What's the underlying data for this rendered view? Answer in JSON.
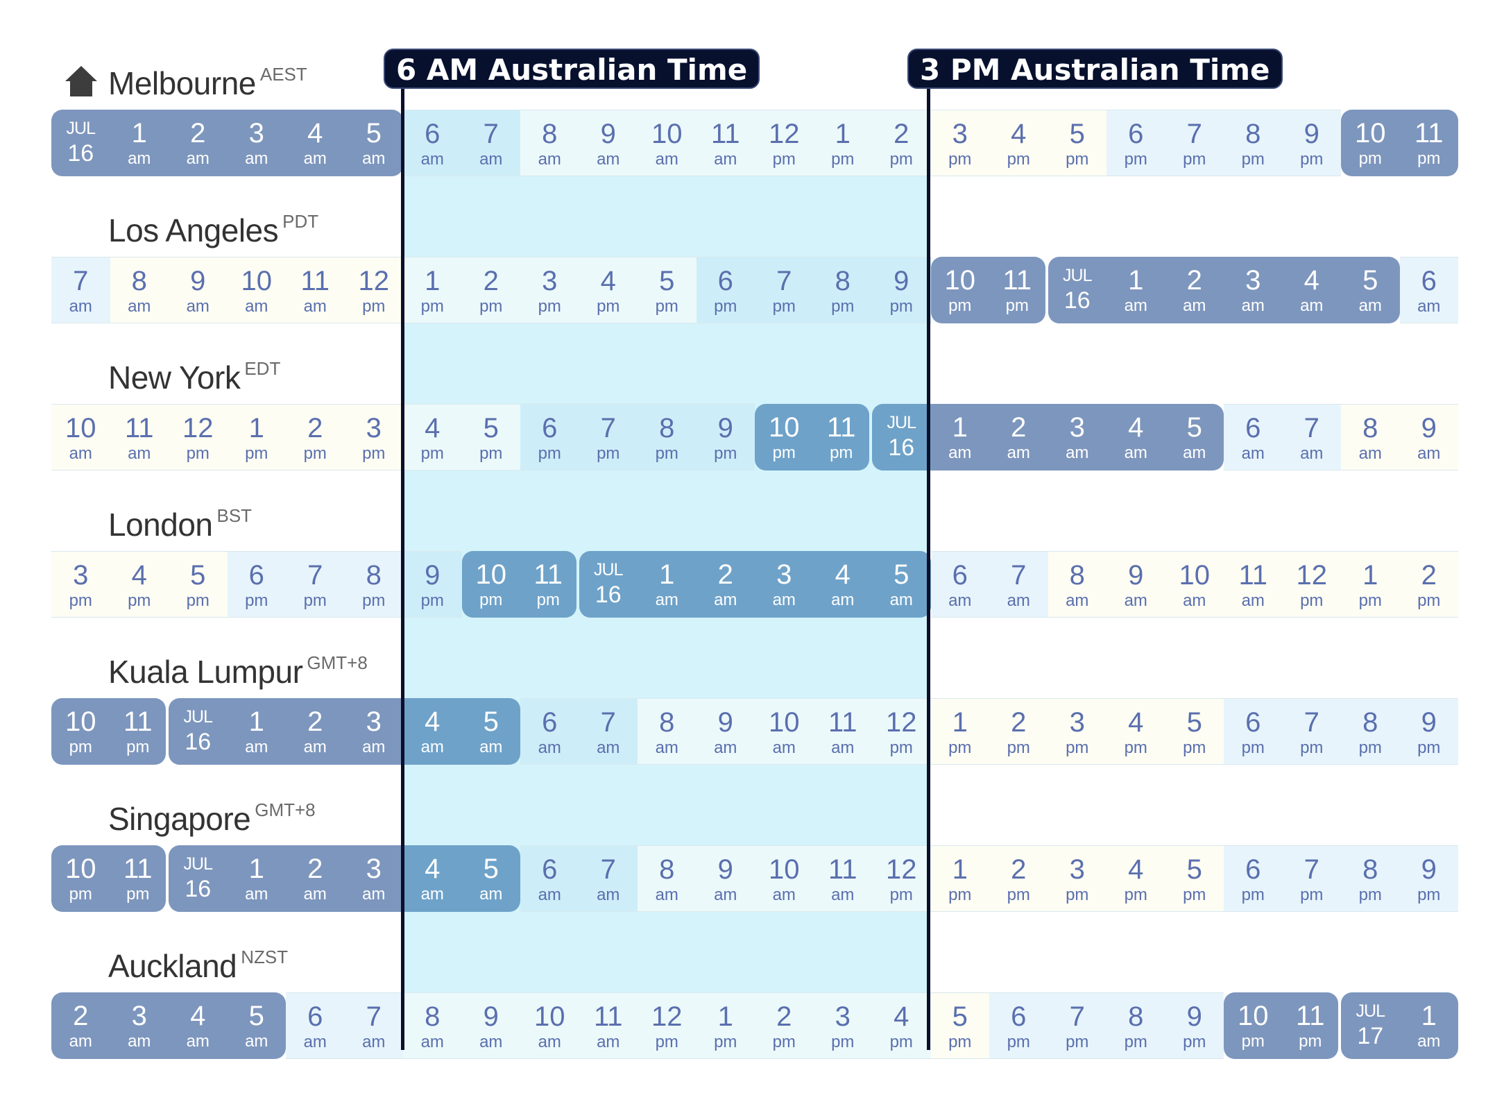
{
  "markers": [
    {
      "label": "6 AM Australian Time",
      "position": "left"
    },
    {
      "label": "3 PM Australian Time",
      "position": "right"
    }
  ],
  "icons": {
    "home": "home-icon"
  },
  "colors": {
    "night": "#7d96bd",
    "night_text": "#ffffff",
    "dawn": "#6ea2c9",
    "morning": "#cdeef8",
    "day": "#ecf9fa",
    "evening": "#e7f4fb",
    "afternoon": "#fdfdf3",
    "day_text": "#5a6fae",
    "highlight": "#d4f3fa",
    "marker": "#07112e"
  },
  "cities": [
    {
      "name": "Melbourne",
      "abbr": "AEST",
      "home": true,
      "cells": [
        {
          "type": "date",
          "m": "JUL",
          "d": "16",
          "c": "night"
        },
        {
          "n": "1",
          "s": "am",
          "c": "night"
        },
        {
          "n": "2",
          "s": "am",
          "c": "night"
        },
        {
          "n": "3",
          "s": "am",
          "c": "night"
        },
        {
          "n": "4",
          "s": "am",
          "c": "night"
        },
        {
          "n": "5",
          "s": "am",
          "c": "night"
        },
        {
          "n": "6",
          "s": "am",
          "c": "morning"
        },
        {
          "n": "7",
          "s": "am",
          "c": "morning"
        },
        {
          "n": "8",
          "s": "am",
          "c": "day"
        },
        {
          "n": "9",
          "s": "am",
          "c": "day"
        },
        {
          "n": "10",
          "s": "am",
          "c": "day"
        },
        {
          "n": "11",
          "s": "am",
          "c": "day"
        },
        {
          "n": "12",
          "s": "pm",
          "c": "day"
        },
        {
          "n": "1",
          "s": "pm",
          "c": "day"
        },
        {
          "n": "2",
          "s": "pm",
          "c": "day"
        },
        {
          "n": "3",
          "s": "pm",
          "c": "afternoon"
        },
        {
          "n": "4",
          "s": "pm",
          "c": "afternoon"
        },
        {
          "n": "5",
          "s": "pm",
          "c": "afternoon"
        },
        {
          "n": "6",
          "s": "pm",
          "c": "evening"
        },
        {
          "n": "7",
          "s": "pm",
          "c": "evening"
        },
        {
          "n": "8",
          "s": "pm",
          "c": "evening"
        },
        {
          "n": "9",
          "s": "pm",
          "c": "evening"
        },
        {
          "n": "10",
          "s": "pm",
          "c": "night"
        },
        {
          "n": "11",
          "s": "pm",
          "c": "night"
        }
      ]
    },
    {
      "name": "Los Angeles",
      "abbr": "PDT",
      "cells": [
        {
          "n": "7",
          "s": "am",
          "c": "evening"
        },
        {
          "n": "8",
          "s": "am",
          "c": "afternoon"
        },
        {
          "n": "9",
          "s": "am",
          "c": "afternoon"
        },
        {
          "n": "10",
          "s": "am",
          "c": "afternoon"
        },
        {
          "n": "11",
          "s": "am",
          "c": "afternoon"
        },
        {
          "n": "12",
          "s": "pm",
          "c": "afternoon"
        },
        {
          "n": "1",
          "s": "pm",
          "c": "day"
        },
        {
          "n": "2",
          "s": "pm",
          "c": "day"
        },
        {
          "n": "3",
          "s": "pm",
          "c": "day"
        },
        {
          "n": "4",
          "s": "pm",
          "c": "day"
        },
        {
          "n": "5",
          "s": "pm",
          "c": "day"
        },
        {
          "n": "6",
          "s": "pm",
          "c": "morning"
        },
        {
          "n": "7",
          "s": "pm",
          "c": "morning"
        },
        {
          "n": "8",
          "s": "pm",
          "c": "morning"
        },
        {
          "n": "9",
          "s": "pm",
          "c": "morning"
        },
        {
          "n": "10",
          "s": "pm",
          "c": "night"
        },
        {
          "n": "11",
          "s": "pm",
          "c": "night"
        },
        {
          "type": "date",
          "m": "JUL",
          "d": "16",
          "c": "night"
        },
        {
          "n": "1",
          "s": "am",
          "c": "night"
        },
        {
          "n": "2",
          "s": "am",
          "c": "night"
        },
        {
          "n": "3",
          "s": "am",
          "c": "night"
        },
        {
          "n": "4",
          "s": "am",
          "c": "night"
        },
        {
          "n": "5",
          "s": "am",
          "c": "night"
        },
        {
          "n": "6",
          "s": "am",
          "c": "evening"
        }
      ]
    },
    {
      "name": "New York",
      "abbr": "EDT",
      "cells": [
        {
          "n": "10",
          "s": "am",
          "c": "afternoon"
        },
        {
          "n": "11",
          "s": "am",
          "c": "afternoon"
        },
        {
          "n": "12",
          "s": "pm",
          "c": "afternoon"
        },
        {
          "n": "1",
          "s": "pm",
          "c": "afternoon"
        },
        {
          "n": "2",
          "s": "pm",
          "c": "afternoon"
        },
        {
          "n": "3",
          "s": "pm",
          "c": "afternoon"
        },
        {
          "n": "4",
          "s": "pm",
          "c": "day"
        },
        {
          "n": "5",
          "s": "pm",
          "c": "day"
        },
        {
          "n": "6",
          "s": "pm",
          "c": "morning"
        },
        {
          "n": "7",
          "s": "pm",
          "c": "morning"
        },
        {
          "n": "8",
          "s": "pm",
          "c": "morning"
        },
        {
          "n": "9",
          "s": "pm",
          "c": "morning"
        },
        {
          "n": "10",
          "s": "pm",
          "c": "dawn"
        },
        {
          "n": "11",
          "s": "pm",
          "c": "dawn"
        },
        {
          "type": "date",
          "m": "JUL",
          "d": "16",
          "c": "dawn"
        },
        {
          "n": "1",
          "s": "am",
          "c": "night"
        },
        {
          "n": "2",
          "s": "am",
          "c": "night"
        },
        {
          "n": "3",
          "s": "am",
          "c": "night"
        },
        {
          "n": "4",
          "s": "am",
          "c": "night"
        },
        {
          "n": "5",
          "s": "am",
          "c": "night"
        },
        {
          "n": "6",
          "s": "am",
          "c": "evening"
        },
        {
          "n": "7",
          "s": "am",
          "c": "evening"
        },
        {
          "n": "8",
          "s": "am",
          "c": "afternoon"
        },
        {
          "n": "9",
          "s": "am",
          "c": "afternoon"
        }
      ]
    },
    {
      "name": "London",
      "abbr": "BST",
      "cells": [
        {
          "n": "3",
          "s": "pm",
          "c": "afternoon"
        },
        {
          "n": "4",
          "s": "pm",
          "c": "afternoon"
        },
        {
          "n": "5",
          "s": "pm",
          "c": "afternoon"
        },
        {
          "n": "6",
          "s": "pm",
          "c": "evening"
        },
        {
          "n": "7",
          "s": "pm",
          "c": "evening"
        },
        {
          "n": "8",
          "s": "pm",
          "c": "evening"
        },
        {
          "n": "9",
          "s": "pm",
          "c": "morning"
        },
        {
          "n": "10",
          "s": "pm",
          "c": "dawn"
        },
        {
          "n": "11",
          "s": "pm",
          "c": "dawn"
        },
        {
          "type": "date",
          "m": "JUL",
          "d": "16",
          "c": "dawn"
        },
        {
          "n": "1",
          "s": "am",
          "c": "dawn"
        },
        {
          "n": "2",
          "s": "am",
          "c": "dawn"
        },
        {
          "n": "3",
          "s": "am",
          "c": "dawn"
        },
        {
          "n": "4",
          "s": "am",
          "c": "dawn"
        },
        {
          "n": "5",
          "s": "am",
          "c": "dawn"
        },
        {
          "n": "6",
          "s": "am",
          "c": "evening"
        },
        {
          "n": "7",
          "s": "am",
          "c": "evening"
        },
        {
          "n": "8",
          "s": "am",
          "c": "afternoon"
        },
        {
          "n": "9",
          "s": "am",
          "c": "afternoon"
        },
        {
          "n": "10",
          "s": "am",
          "c": "afternoon"
        },
        {
          "n": "11",
          "s": "am",
          "c": "afternoon"
        },
        {
          "n": "12",
          "s": "pm",
          "c": "afternoon"
        },
        {
          "n": "1",
          "s": "pm",
          "c": "afternoon"
        },
        {
          "n": "2",
          "s": "pm",
          "c": "afternoon"
        }
      ]
    },
    {
      "name": "Kuala Lumpur",
      "abbr": "GMT+8",
      "cells": [
        {
          "n": "10",
          "s": "pm",
          "c": "night"
        },
        {
          "n": "11",
          "s": "pm",
          "c": "night"
        },
        {
          "type": "date",
          "m": "JUL",
          "d": "16",
          "c": "night"
        },
        {
          "n": "1",
          "s": "am",
          "c": "night"
        },
        {
          "n": "2",
          "s": "am",
          "c": "night"
        },
        {
          "n": "3",
          "s": "am",
          "c": "night"
        },
        {
          "n": "4",
          "s": "am",
          "c": "dawn"
        },
        {
          "n": "5",
          "s": "am",
          "c": "dawn"
        },
        {
          "n": "6",
          "s": "am",
          "c": "morning"
        },
        {
          "n": "7",
          "s": "am",
          "c": "morning"
        },
        {
          "n": "8",
          "s": "am",
          "c": "day"
        },
        {
          "n": "9",
          "s": "am",
          "c": "day"
        },
        {
          "n": "10",
          "s": "am",
          "c": "day"
        },
        {
          "n": "11",
          "s": "am",
          "c": "day"
        },
        {
          "n": "12",
          "s": "pm",
          "c": "day"
        },
        {
          "n": "1",
          "s": "pm",
          "c": "afternoon"
        },
        {
          "n": "2",
          "s": "pm",
          "c": "afternoon"
        },
        {
          "n": "3",
          "s": "pm",
          "c": "afternoon"
        },
        {
          "n": "4",
          "s": "pm",
          "c": "afternoon"
        },
        {
          "n": "5",
          "s": "pm",
          "c": "afternoon"
        },
        {
          "n": "6",
          "s": "pm",
          "c": "evening"
        },
        {
          "n": "7",
          "s": "pm",
          "c": "evening"
        },
        {
          "n": "8",
          "s": "pm",
          "c": "evening"
        },
        {
          "n": "9",
          "s": "pm",
          "c": "evening"
        }
      ]
    },
    {
      "name": "Singapore",
      "abbr": "GMT+8",
      "cells": [
        {
          "n": "10",
          "s": "pm",
          "c": "night"
        },
        {
          "n": "11",
          "s": "pm",
          "c": "night"
        },
        {
          "type": "date",
          "m": "JUL",
          "d": "16",
          "c": "night"
        },
        {
          "n": "1",
          "s": "am",
          "c": "night"
        },
        {
          "n": "2",
          "s": "am",
          "c": "night"
        },
        {
          "n": "3",
          "s": "am",
          "c": "night"
        },
        {
          "n": "4",
          "s": "am",
          "c": "dawn"
        },
        {
          "n": "5",
          "s": "am",
          "c": "dawn"
        },
        {
          "n": "6",
          "s": "am",
          "c": "morning"
        },
        {
          "n": "7",
          "s": "am",
          "c": "morning"
        },
        {
          "n": "8",
          "s": "am",
          "c": "day"
        },
        {
          "n": "9",
          "s": "am",
          "c": "day"
        },
        {
          "n": "10",
          "s": "am",
          "c": "day"
        },
        {
          "n": "11",
          "s": "am",
          "c": "day"
        },
        {
          "n": "12",
          "s": "pm",
          "c": "day"
        },
        {
          "n": "1",
          "s": "pm",
          "c": "afternoon"
        },
        {
          "n": "2",
          "s": "pm",
          "c": "afternoon"
        },
        {
          "n": "3",
          "s": "pm",
          "c": "afternoon"
        },
        {
          "n": "4",
          "s": "pm",
          "c": "afternoon"
        },
        {
          "n": "5",
          "s": "pm",
          "c": "afternoon"
        },
        {
          "n": "6",
          "s": "pm",
          "c": "evening"
        },
        {
          "n": "7",
          "s": "pm",
          "c": "evening"
        },
        {
          "n": "8",
          "s": "pm",
          "c": "evening"
        },
        {
          "n": "9",
          "s": "pm",
          "c": "evening"
        }
      ]
    },
    {
      "name": "Auckland",
      "abbr": "NZST",
      "cells": [
        {
          "n": "2",
          "s": "am",
          "c": "night"
        },
        {
          "n": "3",
          "s": "am",
          "c": "night"
        },
        {
          "n": "4",
          "s": "am",
          "c": "night"
        },
        {
          "n": "5",
          "s": "am",
          "c": "night"
        },
        {
          "n": "6",
          "s": "am",
          "c": "evening"
        },
        {
          "n": "7",
          "s": "am",
          "c": "evening"
        },
        {
          "n": "8",
          "s": "am",
          "c": "day"
        },
        {
          "n": "9",
          "s": "am",
          "c": "day"
        },
        {
          "n": "10",
          "s": "am",
          "c": "day"
        },
        {
          "n": "11",
          "s": "am",
          "c": "day"
        },
        {
          "n": "12",
          "s": "pm",
          "c": "day"
        },
        {
          "n": "1",
          "s": "pm",
          "c": "day"
        },
        {
          "n": "2",
          "s": "pm",
          "c": "day"
        },
        {
          "n": "3",
          "s": "pm",
          "c": "day"
        },
        {
          "n": "4",
          "s": "pm",
          "c": "day"
        },
        {
          "n": "5",
          "s": "pm",
          "c": "afternoon"
        },
        {
          "n": "6",
          "s": "pm",
          "c": "evening"
        },
        {
          "n": "7",
          "s": "pm",
          "c": "evening"
        },
        {
          "n": "8",
          "s": "pm",
          "c": "evening"
        },
        {
          "n": "9",
          "s": "pm",
          "c": "evening"
        },
        {
          "n": "10",
          "s": "pm",
          "c": "night"
        },
        {
          "n": "11",
          "s": "pm",
          "c": "night"
        },
        {
          "type": "date",
          "m": "JUL",
          "d": "17",
          "c": "night"
        },
        {
          "n": "1",
          "s": "am",
          "c": "night"
        }
      ]
    }
  ]
}
